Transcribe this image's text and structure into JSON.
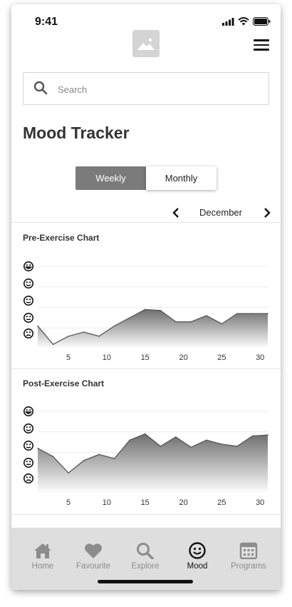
{
  "status": {
    "time": "9:41"
  },
  "search": {
    "placeholder": "Search"
  },
  "page": {
    "title": "Mood Tracker"
  },
  "toggle": {
    "weekly": "Weekly",
    "monthly": "Monthly",
    "selected": "Weekly"
  },
  "month": {
    "label": "December"
  },
  "charts": [
    {
      "title": "Pre-Exercise Chart"
    },
    {
      "title": "Post-Exercise Chart"
    }
  ],
  "tabs": [
    {
      "label": "Home",
      "icon": "home-icon"
    },
    {
      "label": "Favourite",
      "icon": "heart-icon"
    },
    {
      "label": "Explore",
      "icon": "search-icon"
    },
    {
      "label": "Mood",
      "icon": "smiley-icon",
      "active": true
    },
    {
      "label": "Programs",
      "icon": "calendar-icon"
    }
  ],
  "chart_data": [
    {
      "type": "area",
      "title": "Pre-Exercise Chart",
      "x": [
        1,
        3,
        5,
        7,
        9,
        11,
        13,
        15,
        17,
        19,
        21,
        23,
        25,
        27,
        29,
        31
      ],
      "y": [
        2.1,
        1.2,
        1.6,
        1.8,
        1.6,
        2.1,
        2.5,
        2.9,
        2.85,
        2.3,
        2.3,
        2.6,
        2.2,
        2.7,
        2.7,
        2.7
      ],
      "xticks": [
        "5",
        "10",
        "15",
        "20",
        "25",
        "30"
      ],
      "ylim": [
        1,
        5
      ],
      "y_axis_icons": [
        "very-happy-face-icon",
        "happy-face-icon",
        "neutral-happy-face-icon",
        "neutral-face-icon",
        "sad-face-icon"
      ],
      "grid": true
    },
    {
      "type": "area",
      "title": "Post-Exercise Chart",
      "x": [
        1,
        3,
        5,
        7,
        9,
        11,
        13,
        15,
        17,
        19,
        21,
        23,
        25,
        27,
        29,
        31
      ],
      "y": [
        3.2,
        2.8,
        2.0,
        2.6,
        2.9,
        2.7,
        3.6,
        3.9,
        3.3,
        3.75,
        3.25,
        3.6,
        3.4,
        3.3,
        3.8,
        3.85
      ],
      "xticks": [
        "5",
        "10",
        "15",
        "20",
        "25",
        "30"
      ],
      "ylim": [
        1,
        5
      ],
      "y_axis_icons": [
        "very-happy-face-icon",
        "happy-face-icon",
        "neutral-happy-face-icon",
        "neutral-face-icon",
        "sad-face-icon"
      ],
      "grid": true
    }
  ]
}
